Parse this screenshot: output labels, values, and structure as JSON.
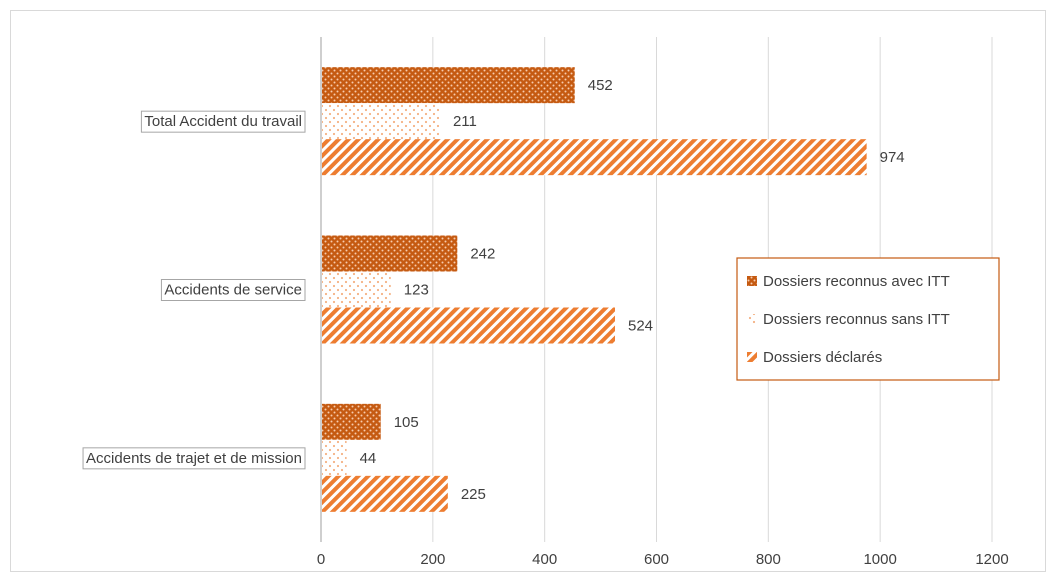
{
  "chart_data": {
    "type": "bar",
    "orientation": "horizontal",
    "title": "",
    "xlabel": "",
    "ylabel": "",
    "categories": [
      "Accidents de trajet et de mission",
      "Accidents de service",
      "Total Accident du travail"
    ],
    "series": [
      {
        "name": "Dossiers reconnus avec ITT",
        "values": [
          105,
          242,
          452
        ],
        "color": "#c55a11",
        "pattern": "dense-dots"
      },
      {
        "name": "Dossiers reconnus sans ITT",
        "values": [
          44,
          123,
          211
        ],
        "color": "#f4b183",
        "pattern": "sparse-dots"
      },
      {
        "name": "Dossiers déclarés",
        "values": [
          225,
          524,
          974
        ],
        "color": "#ed7d31",
        "pattern": "diagonal-stripes"
      }
    ],
    "xlim": [
      0,
      1200
    ],
    "xticks": [
      0,
      200,
      400,
      600,
      800,
      1000,
      1200
    ],
    "grid": "vertical",
    "legend_position": "right"
  }
}
